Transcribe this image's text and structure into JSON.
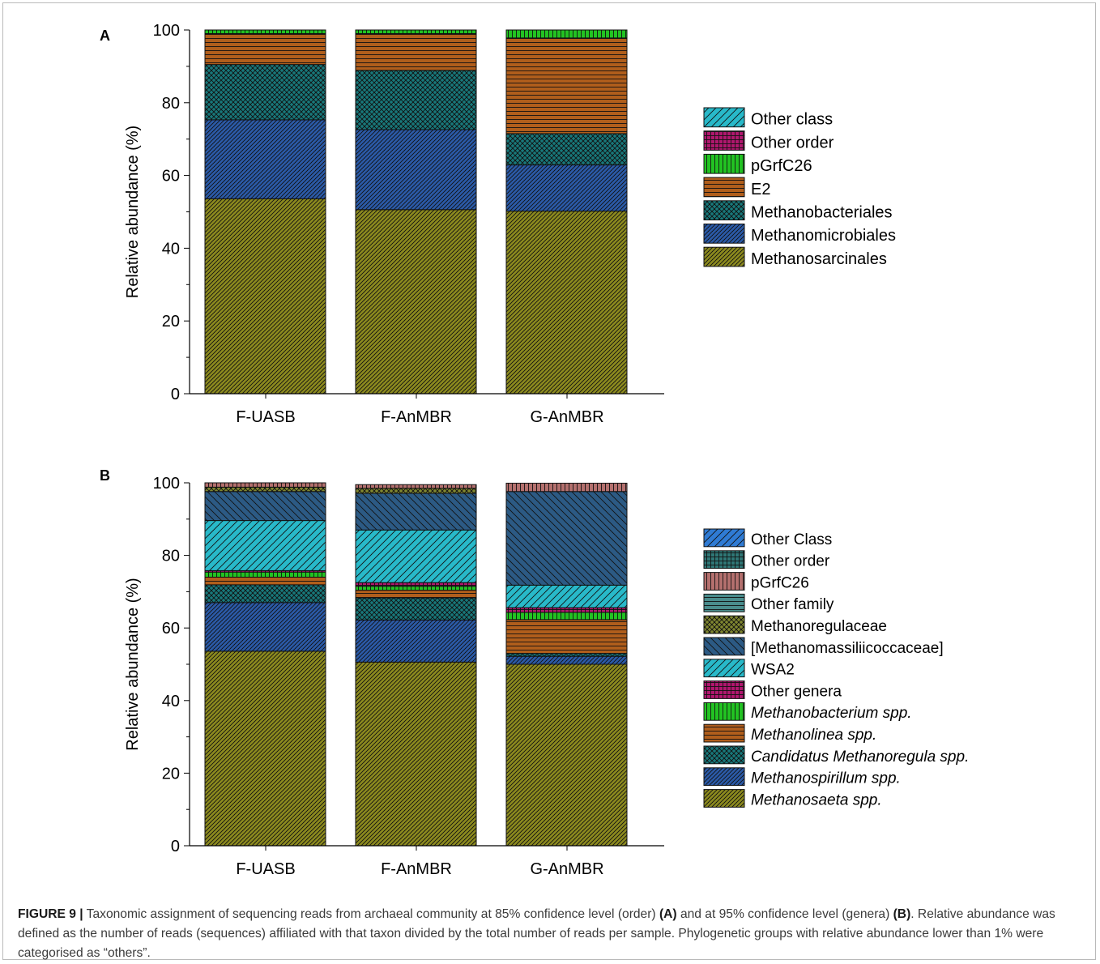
{
  "chart_data": [
    {
      "type": "bar",
      "panel_label": "A",
      "stacked": true,
      "ylabel": "Relative abundance (%)",
      "ylim": [
        0,
        100
      ],
      "yticks": [
        0,
        20,
        40,
        60,
        80,
        100
      ],
      "categories": [
        "F-UASB",
        "F-AnMBR",
        "G-AnMBR"
      ],
      "legend_position": "right",
      "series": [
        {
          "name": "Methanosarcinales",
          "italic": false,
          "color": "#8c8a1e",
          "pattern": "diag-fine",
          "values": [
            53.6,
            50.6,
            50.2
          ]
        },
        {
          "name": "Methanomicrobiales",
          "italic": false,
          "color": "#2b5aa8",
          "pattern": "diag-fine",
          "values": [
            21.7,
            22.0,
            12.7
          ]
        },
        {
          "name": "Methanobacteriales",
          "italic": false,
          "color": "#18787a",
          "pattern": "crosshatch",
          "values": [
            15.2,
            16.3,
            8.6
          ]
        },
        {
          "name": "E2",
          "italic": false,
          "color": "#b05e1c",
          "pattern": "horizontal",
          "values": [
            8.5,
            10.1,
            26.3
          ]
        },
        {
          "name": "pGrfC26",
          "italic": false,
          "color": "#22c322",
          "pattern": "vertical",
          "values": [
            1.0,
            1.0,
            2.2
          ]
        },
        {
          "name": "Other order",
          "italic": false,
          "color": "#b0176e",
          "pattern": "grid",
          "values": [
            0,
            0,
            0
          ]
        },
        {
          "name": "Other class",
          "italic": false,
          "color": "#28b9c9",
          "pattern": "diag-wide",
          "values": [
            0,
            0,
            0
          ]
        }
      ]
    },
    {
      "type": "bar",
      "panel_label": "B",
      "stacked": true,
      "ylabel": "Relative abundance (%)",
      "ylim": [
        0,
        100
      ],
      "yticks": [
        0,
        20,
        40,
        60,
        80,
        100
      ],
      "categories": [
        "F-UASB",
        "F-AnMBR",
        "G-AnMBR"
      ],
      "legend_position": "right",
      "series": [
        {
          "name": "Methanosaeta spp.",
          "italic": true,
          "color": "#8c8a1e",
          "pattern": "diag-fine",
          "values": [
            53.6,
            50.6,
            50.0
          ]
        },
        {
          "name": "Methanospirillum spp.",
          "italic": true,
          "color": "#2b5aa8",
          "pattern": "diag-fine",
          "values": [
            13.4,
            11.6,
            2.2
          ]
        },
        {
          "name": "Candidatus Methanoregula spp.",
          "italic": true,
          "color": "#18787a",
          "pattern": "crosshatch",
          "values": [
            4.9,
            6.1,
            0.8
          ]
        },
        {
          "name": "Methanolinea spp.",
          "italic": true,
          "color": "#b05e1c",
          "pattern": "horizontal",
          "values": [
            2.1,
            2.1,
            9.3
          ]
        },
        {
          "name": "Methanobacterium spp.",
          "italic": true,
          "color": "#22c322",
          "pattern": "vertical",
          "values": [
            1.4,
            1.1,
            2.0
          ]
        },
        {
          "name": "Other genera",
          "italic": false,
          "color": "#b0176e",
          "pattern": "grid",
          "values": [
            0.4,
            1.0,
            1.3
          ]
        },
        {
          "name": "WSA2",
          "italic": false,
          "color": "#28b9c9",
          "pattern": "diag-wide",
          "values": [
            13.8,
            14.5,
            6.2
          ]
        },
        {
          "name": "[Methanomassiliicoccaceae]",
          "italic": false,
          "color": "#2c5a84",
          "pattern": "diag-wide-back",
          "values": [
            8.0,
            10.1,
            25.8
          ]
        },
        {
          "name": "Methanoregulaceae",
          "italic": false,
          "color": "#7f8630",
          "pattern": "crosshatch",
          "values": [
            1.2,
            1.4,
            0
          ]
        },
        {
          "name": "Other family",
          "italic": false,
          "color": "#4a8c8c",
          "pattern": "horizontal",
          "values": [
            0,
            0,
            0
          ]
        },
        {
          "name": "pGrfC26",
          "italic": false,
          "color": "#b4706e",
          "pattern": "vertical",
          "values": [
            1.2,
            1.0,
            2.3
          ]
        },
        {
          "name": "Other order",
          "italic": false,
          "color": "#2f7776",
          "pattern": "grid",
          "values": [
            0,
            0,
            0
          ]
        },
        {
          "name": "Other Class",
          "italic": false,
          "color": "#2f7bd4",
          "pattern": "diag-wide",
          "values": [
            0,
            0,
            0
          ]
        }
      ]
    }
  ],
  "caption": {
    "figure_label": "FIGURE 9 |",
    "part1": " Taxonomic assignment of sequencing reads from archaeal community at 85% confidence level (order) ",
    "ref_a": "(A)",
    "part2": " and at 95% confidence level (genera) ",
    "ref_b": "(B)",
    "part3": ". Relative abundance was defined as the number of reads (sequences) affiliated with that taxon divided by the total number of reads per sample. Phylogenetic groups with relative abundance lower than 1% were categorised as “others”."
  }
}
